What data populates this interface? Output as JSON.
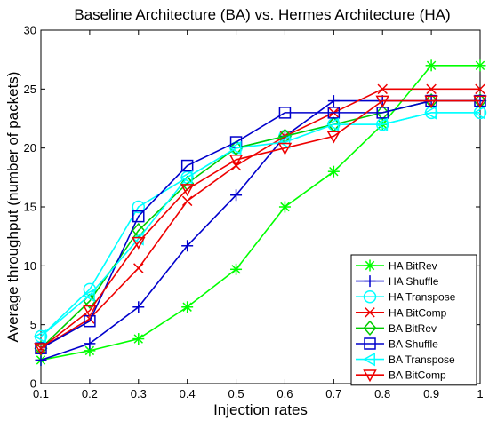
{
  "chart_data": {
    "type": "line",
    "title": "Baseline Architecture (BA) vs. Hermes Architecture (HA)",
    "xlabel": "Injection rates",
    "ylabel": "Average throughput (number of packets)",
    "xlim": [
      0.1,
      1
    ],
    "ylim": [
      0,
      30
    ],
    "x_ticks": [
      "0.1",
      "0.2",
      "0.3",
      "0.4",
      "0.5",
      "0.6",
      "0.7",
      "0.8",
      "0.9",
      "1"
    ],
    "y_ticks": [
      "0",
      "5",
      "10",
      "15",
      "20",
      "25",
      "30"
    ],
    "grid": false,
    "legend_position": "bottom-right",
    "x": [
      0.1,
      0.2,
      0.3,
      0.4,
      0.5,
      0.6,
      0.7,
      0.8,
      0.9,
      1.0
    ],
    "series": [
      {
        "name": "HA BitRev",
        "color": "#00ff00",
        "marker": "asterisk",
        "values": [
          2,
          2.8,
          3.8,
          6.5,
          9.7,
          15,
          18,
          22,
          27,
          27
        ]
      },
      {
        "name": "HA Shuffle",
        "color": "#0000cc",
        "marker": "plus",
        "values": [
          2,
          3.4,
          6.5,
          11.7,
          16,
          21,
          24,
          24,
          24,
          24
        ]
      },
      {
        "name": "HA Transpose",
        "color": "#00ffff",
        "marker": "circle",
        "values": [
          4,
          8,
          15,
          17.5,
          20,
          21,
          22,
          22,
          23,
          23
        ]
      },
      {
        "name": "HA BitComp",
        "color": "#ee0000",
        "marker": "x",
        "values": [
          3,
          5.5,
          9.8,
          15.5,
          18.5,
          21,
          23,
          25,
          25,
          25
        ]
      },
      {
        "name": "BA BitRev",
        "color": "#00cc00",
        "marker": "diamond",
        "values": [
          3,
          7,
          13,
          17,
          20,
          21,
          22,
          23,
          24,
          24
        ]
      },
      {
        "name": "BA Shuffle",
        "color": "#0000cc",
        "marker": "square",
        "values": [
          3,
          5.3,
          14.2,
          18.5,
          20.5,
          23,
          23,
          23,
          24,
          24
        ]
      },
      {
        "name": "BA Transpose",
        "color": "#00ffff",
        "marker": "triangle-left",
        "values": [
          4,
          7.5,
          12.3,
          17.5,
          20,
          20.5,
          22,
          22,
          23,
          23
        ]
      },
      {
        "name": "BA BitComp",
        "color": "#ee0000",
        "marker": "triangle-down",
        "values": [
          3,
          6.2,
          12,
          16.5,
          19,
          20,
          21,
          24,
          24,
          24
        ]
      }
    ]
  }
}
